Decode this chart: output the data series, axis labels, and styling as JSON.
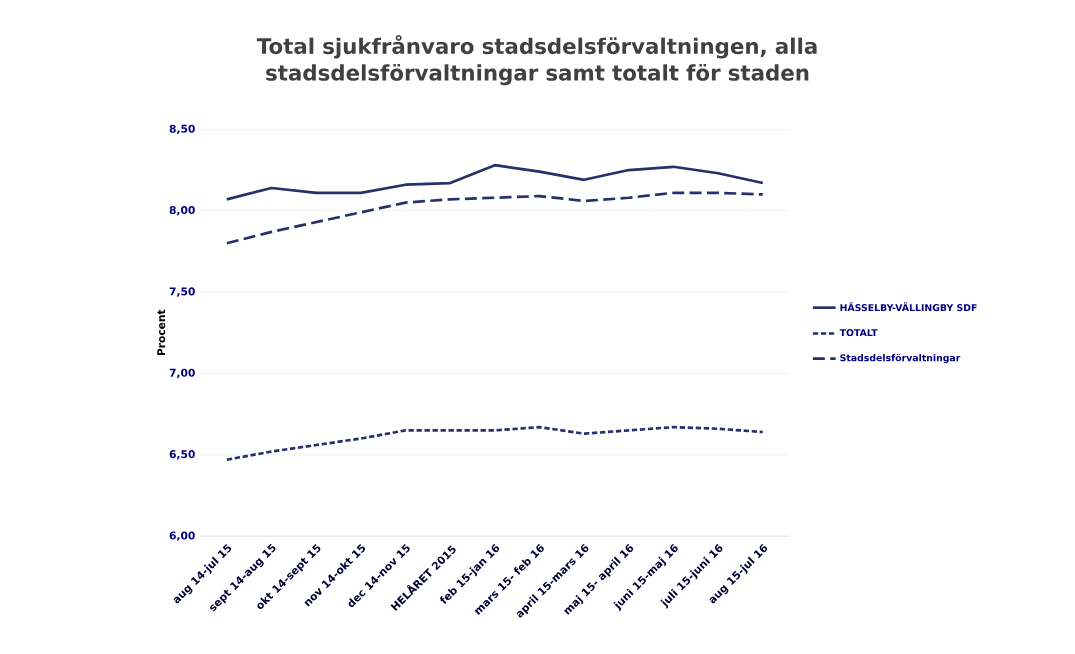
{
  "chart_data": {
    "type": "line",
    "title": "Total sjukfrånvaro stadsdelsförvaltningen, alla stadsdelsförvaltningar samt totalt för staden",
    "ylabel": "Procent",
    "categories": [
      "aug 14-jul 15",
      "sept 14-aug 15",
      "okt 14-sept 15",
      "nov 14-okt 15",
      "dec 14-nov 15",
      "HELÅRET 2015",
      "feb 15-jan 16",
      "mars 15- feb 16",
      "april 15-mars 16",
      "maj 15- april 16",
      "juni 15-maj 16",
      "juli 15-juni 16",
      "aug 15-jul 16"
    ],
    "series": [
      {
        "name": "HÄSSELBY-VÄLLINGBY SDF",
        "color": "#28306a",
        "line_style": "solid",
        "values": [
          8.07,
          8.14,
          8.11,
          8.11,
          8.16,
          8.17,
          8.28,
          8.24,
          8.19,
          8.25,
          8.27,
          8.23,
          8.17
        ]
      },
      {
        "name": "TOTALT",
        "color": "#28306a",
        "line_style": "dotted",
        "values": [
          6.47,
          6.52,
          6.56,
          6.6,
          6.65,
          6.65,
          6.65,
          6.67,
          6.63,
          6.65,
          6.67,
          6.66,
          6.64
        ]
      },
      {
        "name": "Stadsdelsförvaltningar",
        "color": "#28306a",
        "line_style": "dashed",
        "values": [
          7.8,
          7.87,
          7.93,
          7.99,
          8.05,
          8.07,
          8.08,
          8.09,
          8.06,
          8.08,
          8.11,
          8.11,
          8.1
        ]
      }
    ],
    "ylim": [
      6,
      8.5
    ],
    "yticks": [
      {
        "value": 6,
        "label": "6,00"
      },
      {
        "value": 6.5,
        "label": "6,50"
      },
      {
        "value": 7,
        "label": "7,00"
      },
      {
        "value": 7.5,
        "label": "7,50"
      },
      {
        "value": 8,
        "label": "8,00"
      },
      {
        "value": 8.5,
        "label": "8,50"
      }
    ],
    "grid": "y",
    "legend": "right"
  }
}
